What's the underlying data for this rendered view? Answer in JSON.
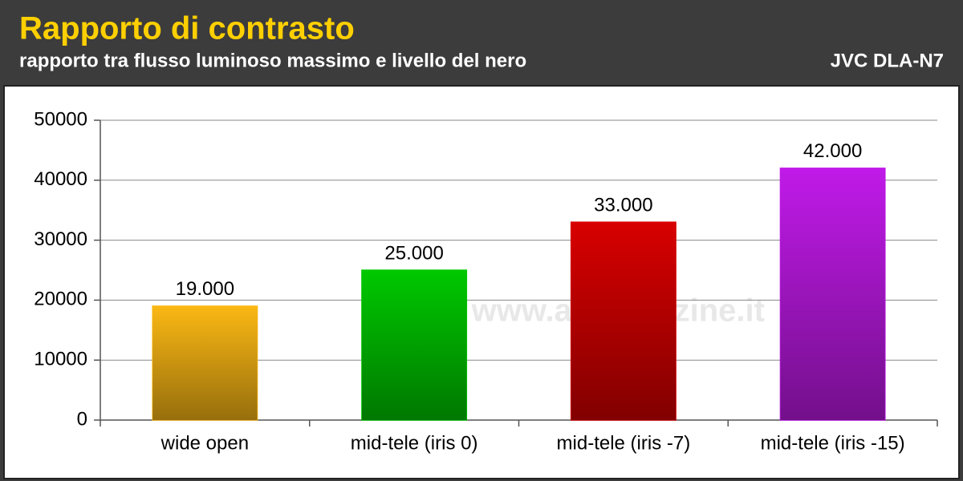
{
  "chart_data": {
    "type": "bar",
    "title": "Rapporto di contrasto",
    "subtitle": "rapporto tra flusso luminoso massimo e livello del nero",
    "model": "JVC DLA-N7",
    "watermark": "© www.avmagazine.it",
    "categories": [
      "wide open",
      "mid-tele (iris 0)",
      "mid-tele (iris -7)",
      "mid-tele (iris -15)"
    ],
    "values": [
      19000,
      25000,
      33000,
      42000
    ],
    "value_labels": [
      "19.000",
      "25.000",
      "33.000",
      "42.000"
    ],
    "colors": [
      "#fbb814",
      "#00c800",
      "#d80000",
      "#c01ae8"
    ],
    "ylim": [
      0,
      50000
    ],
    "yticks": [
      0,
      10000,
      20000,
      30000,
      40000,
      50000
    ],
    "grid": true
  }
}
